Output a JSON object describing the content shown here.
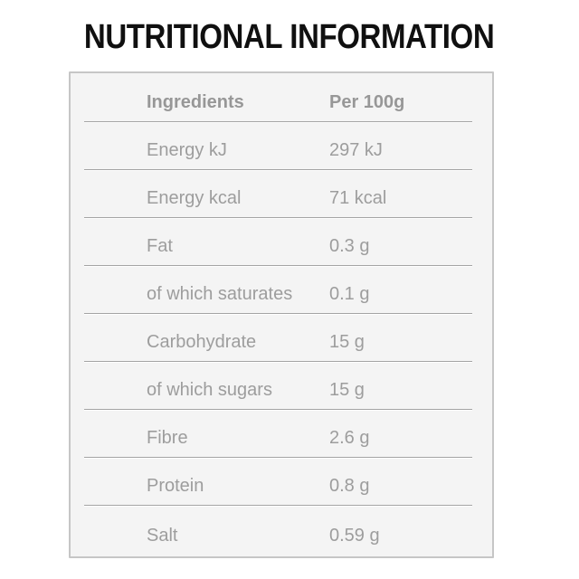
{
  "title": "NUTRITIONAL INFORMATION",
  "table": {
    "header": {
      "col1": "Ingredients",
      "col2": "Per 100g"
    },
    "rows": [
      {
        "label": "Energy kJ",
        "value": "297 kJ"
      },
      {
        "label": "Energy kcal",
        "value": "71 kcal"
      },
      {
        "label": "Fat",
        "value": "0.3 g"
      },
      {
        "label": "of which saturates",
        "value": "0.1 g"
      },
      {
        "label": "Carbohydrate",
        "value": "15 g"
      },
      {
        "label": "of which sugars",
        "value": "15 g"
      },
      {
        "label": "Fibre",
        "value": "2.6 g"
      },
      {
        "label": "Protein",
        "value": "0.8 g"
      },
      {
        "label": "Salt",
        "value": "0.59 g"
      }
    ]
  },
  "colors": {
    "title_text": "#101010",
    "table_text": "#9d9d9d",
    "header_text": "#979797",
    "panel_background": "#f4f4f4",
    "panel_border": "#c6c6c6",
    "divider": "#a4a4a4"
  }
}
